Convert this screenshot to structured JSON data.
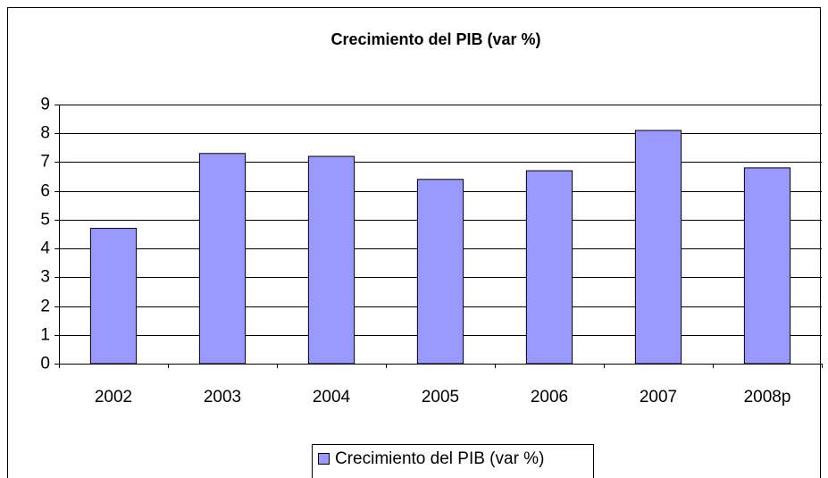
{
  "chart_data": {
    "type": "bar",
    "title": "Crecimiento del PIB (var %)",
    "categories": [
      "2002",
      "2003",
      "2004",
      "2005",
      "2006",
      "2007",
      "2008p"
    ],
    "series": [
      {
        "name": "Crecimiento del PIB (var %)",
        "color": "#9999ff",
        "values": [
          4.7,
          7.3,
          7.2,
          6.4,
          6.7,
          8.1,
          6.8
        ]
      }
    ],
    "ylim": [
      0,
      9
    ],
    "yticks": [
      0,
      1,
      2,
      3,
      4,
      5,
      6,
      7,
      8,
      9
    ],
    "grid": true,
    "legend": "bottom"
  }
}
